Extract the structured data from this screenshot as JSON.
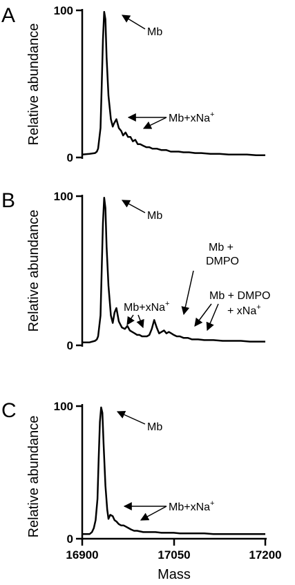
{
  "chart_data": [
    {
      "type": "line",
      "panel": "A",
      "ylabel": "Relative abundance",
      "xlabel": "",
      "xlim": [
        16900,
        17200
      ],
      "ylim": [
        0,
        100
      ],
      "yticks": [
        "0",
        "100"
      ],
      "series": [
        {
          "x": [
            16900,
            16912,
            16921,
            16924,
            16926,
            16930,
            16932,
            16934,
            16936,
            16938,
            16940,
            16943,
            16947,
            16950,
            16952,
            16956,
            16960,
            16964,
            16967,
            16971,
            16975,
            16979,
            16983,
            16987,
            16991,
            16995,
            17000,
            17005,
            17010,
            17015,
            17022,
            17030,
            17038,
            17045,
            17050,
            17058,
            17066,
            17075,
            17085,
            17095,
            17110,
            17125,
            17140,
            17155,
            17170,
            17185,
            17200
          ],
          "values": [
            2,
            2.5,
            3,
            4,
            6,
            20,
            50,
            80,
            99,
            94,
            68,
            42,
            26,
            21,
            23,
            26,
            20,
            18,
            15,
            17,
            14,
            14,
            11,
            12,
            9,
            9,
            8,
            7,
            7,
            6,
            6,
            5,
            5,
            4,
            4,
            4,
            3.5,
            3.5,
            3,
            3,
            2.5,
            2.5,
            2,
            2,
            2,
            1.5,
            1.5
          ]
        }
      ],
      "annotations": [
        {
          "text": "Mb"
        },
        {
          "text": "Mb+xNa",
          "sup": "+"
        }
      ]
    },
    {
      "type": "line",
      "panel": "B",
      "ylabel": "Relative abundance",
      "xlabel": "",
      "xlim": [
        16900,
        17200
      ],
      "ylim": [
        0,
        100
      ],
      "yticks": [
        "0",
        "100"
      ],
      "series": [
        {
          "x": [
            16900,
            16912,
            16921,
            16924,
            16926,
            16930,
            16932,
            16934,
            16936,
            16938,
            16940,
            16943,
            16947,
            16950,
            16953,
            16956,
            16960,
            16965,
            16970,
            16974,
            16978,
            16982,
            16986,
            16990,
            16994,
            16998,
            17002,
            17006,
            17010,
            17014,
            17018,
            17022,
            17026,
            17030,
            17034,
            17038,
            17042,
            17046,
            17050,
            17055,
            17060,
            17066,
            17073,
            17080,
            17090,
            17100,
            17115,
            17130,
            17145,
            17160,
            17175,
            17190,
            17200
          ],
          "values": [
            2,
            2,
            3,
            4,
            6,
            20,
            52,
            82,
            99,
            92,
            66,
            40,
            20,
            15,
            22,
            25,
            16,
            12,
            11,
            13,
            10,
            9,
            8,
            7,
            7,
            6,
            6,
            6,
            7,
            11,
            17,
            12,
            8,
            9,
            10,
            8,
            9,
            8,
            7,
            6,
            6,
            5,
            5,
            4,
            4,
            3.5,
            3.5,
            3,
            3,
            3,
            2.5,
            2.5,
            2.5
          ]
        }
      ],
      "annotations": [
        {
          "text": "Mb"
        },
        {
          "text": "Mb+xNa",
          "sup": "+"
        },
        {
          "text": "Mb +"
        },
        {
          "text": "DMPO"
        },
        {
          "text": "Mb + DMPO"
        },
        {
          "text": "+ xNa",
          "sup": "+"
        }
      ]
    },
    {
      "type": "line",
      "panel": "C",
      "ylabel": "Relative abundance",
      "xlabel": "Mass",
      "xlim": [
        16900,
        17200
      ],
      "ylim": [
        0,
        100
      ],
      "xticks": [
        "16900",
        "17050",
        "17200"
      ],
      "yticks": [
        "0",
        "100"
      ],
      "series": [
        {
          "x": [
            16900,
            16912,
            16916,
            16919,
            16922,
            16925,
            16927,
            16929,
            16931,
            16933,
            16935,
            16938,
            16941,
            16943,
            16946,
            16950,
            16953,
            16956,
            16960,
            16964,
            16968,
            16972,
            16976,
            16980,
            16985,
            16990,
            17000,
            17010,
            17020,
            17030,
            17040,
            17050,
            17060,
            17070,
            17080,
            17090,
            17100,
            17115,
            17130,
            17145,
            17160,
            17175,
            17190,
            17200
          ],
          "values": [
            3.5,
            3.5,
            5,
            8,
            14,
            30,
            60,
            88,
            99,
            95,
            72,
            40,
            22,
            15,
            18,
            17,
            14,
            13,
            11,
            10,
            10,
            9,
            8,
            7,
            6,
            6,
            5,
            5,
            5,
            4.5,
            4.5,
            4.5,
            4,
            4,
            4,
            4,
            4,
            3.5,
            3.5,
            3.5,
            3.5,
            3.5,
            3.5,
            3.5
          ]
        }
      ],
      "annotations": [
        {
          "text": "Mb"
        },
        {
          "text": "Mb+xNa",
          "sup": "+"
        }
      ]
    }
  ],
  "panels": [
    "A",
    "B",
    "C"
  ]
}
